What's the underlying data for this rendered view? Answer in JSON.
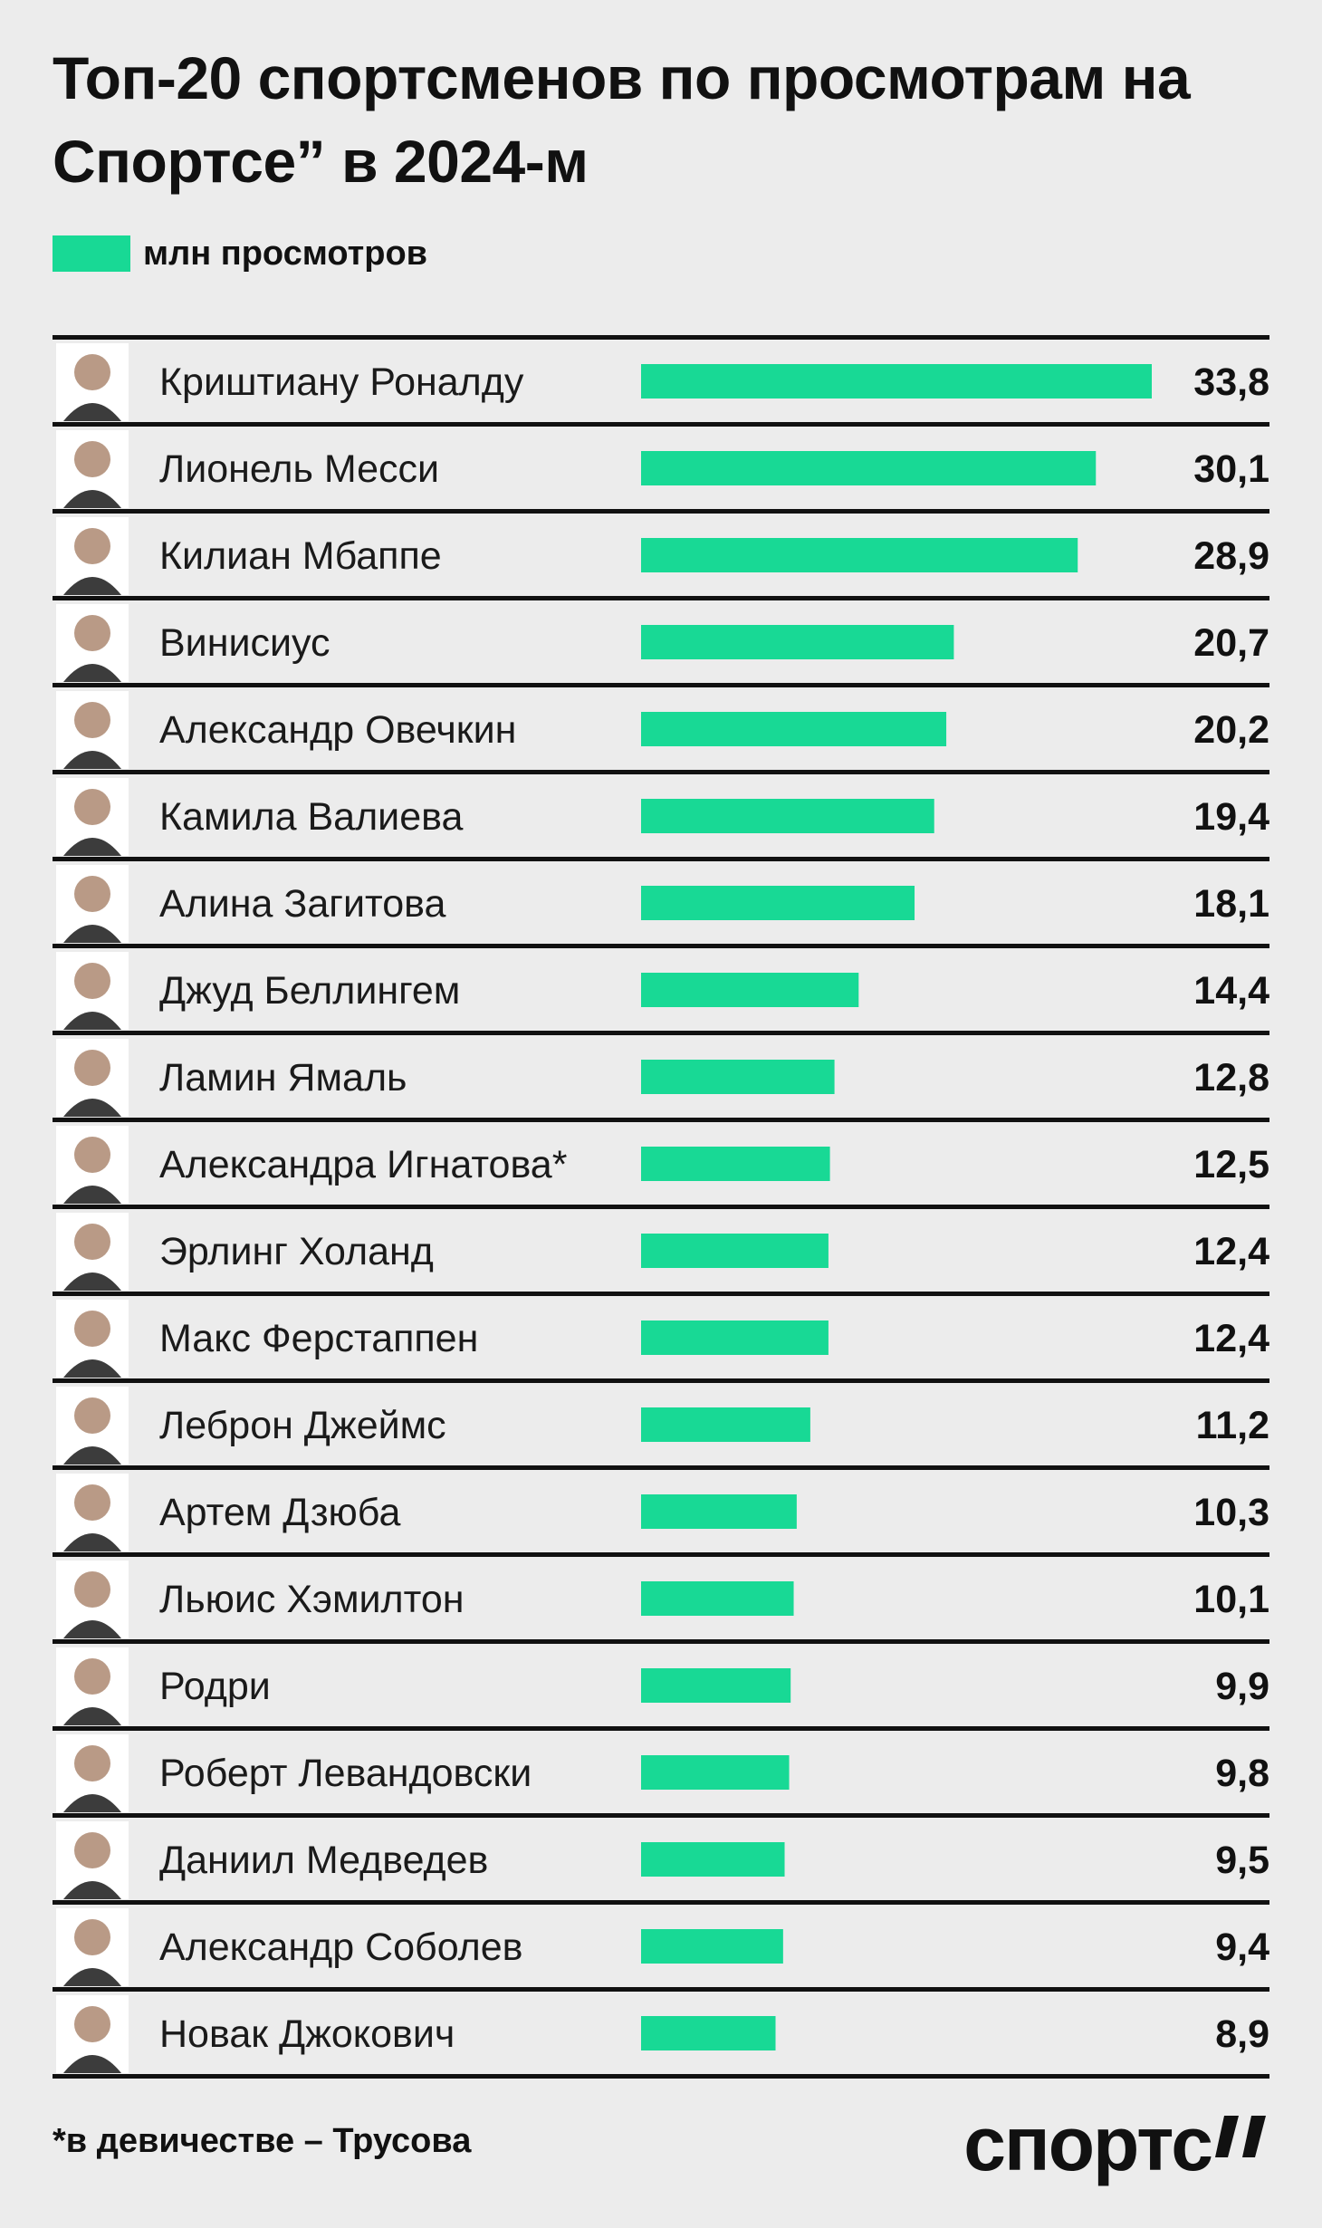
{
  "title": "Топ-20 спортсменов по просмотрам на Спортсе” в 2024-м",
  "legend_label": "млн просмотров",
  "footnote": "*в девичестве – Трусова",
  "logo_text": "спортс",
  "colors": {
    "bar": "#18d995",
    "background": "#ececec",
    "divider": "#111111",
    "text": "#111111"
  },
  "chart_data": {
    "type": "bar",
    "orientation": "horizontal",
    "title": "Топ-20 спортсменов по просмотрам на Спортсе” в 2024-м",
    "legend": [
      "млн просмотров"
    ],
    "categories": [
      "Криштиану Роналду",
      "Лионель Месси",
      "Килиан Мбаппе",
      "Винисиус",
      "Александр Овечкин",
      "Камила Валиева",
      "Алина Загитова",
      "Джуд Беллингем",
      "Ламин Ямаль",
      "Александра Игнатова*",
      "Эрлинг Холанд",
      "Макс Ферстаппен",
      "Леброн Джеймс",
      "Артем Дзюба",
      "Льюис Хэмилтон",
      "Родри",
      "Роберт Левандовски",
      "Даниил Медведев",
      "Александр Соболев",
      "Новак Джокович"
    ],
    "values": [
      33.8,
      30.1,
      28.9,
      20.7,
      20.2,
      19.4,
      18.1,
      14.4,
      12.8,
      12.5,
      12.4,
      12.4,
      11.2,
      10.3,
      10.1,
      9.9,
      9.8,
      9.5,
      9.4,
      8.9
    ],
    "value_labels": [
      "33,8",
      "30,1",
      "28,9",
      "20,7",
      "20,2",
      "19,4",
      "18,1",
      "14,4",
      "12,8",
      "12,5",
      "12,4",
      "12,4",
      "11,2",
      "10,3",
      "10,1",
      "9,9",
      "9,8",
      "9,5",
      "9,4",
      "8,9"
    ],
    "xlim": [
      0,
      33.8
    ],
    "grid": false
  }
}
